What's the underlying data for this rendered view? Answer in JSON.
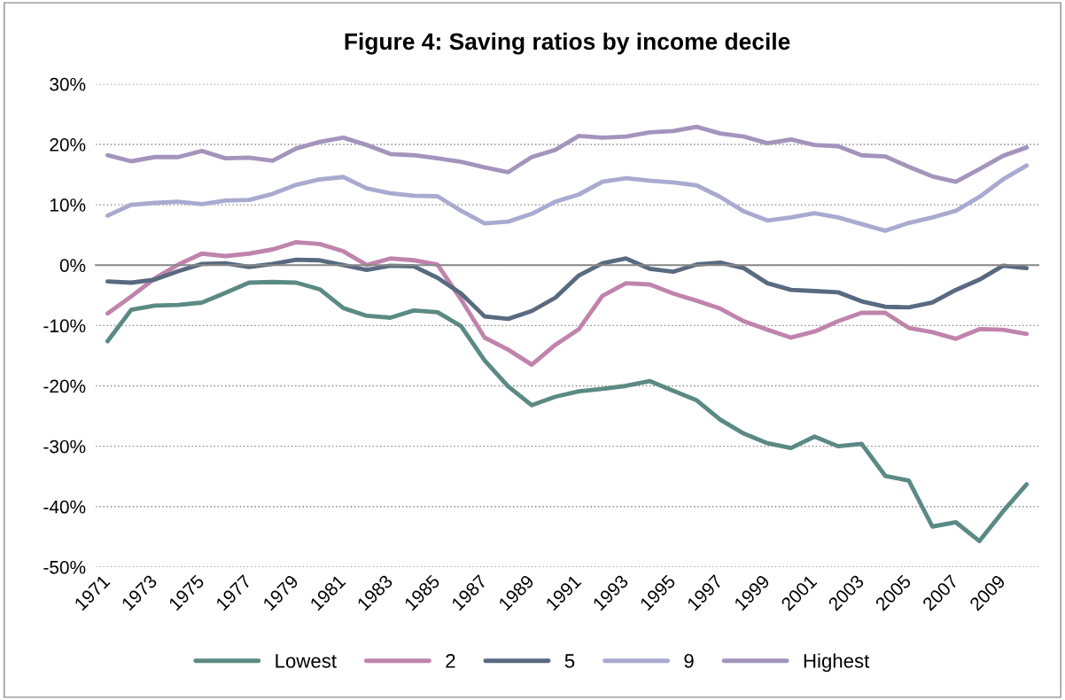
{
  "chart_data": {
    "type": "line",
    "title": "Figure 4: Saving ratios by income decile",
    "categories": [
      "1971",
      null,
      "1973",
      null,
      "1975",
      null,
      "1977",
      null,
      "1979",
      null,
      "1981",
      null,
      "1983",
      null,
      "1985",
      null,
      "1987",
      null,
      "1989",
      null,
      "1991",
      null,
      "1993",
      null,
      "1995",
      null,
      "1997",
      null,
      "1999",
      null,
      "2001",
      null,
      "2003",
      null,
      "2005",
      null,
      "2007",
      null,
      "2009",
      null
    ],
    "series": [
      {
        "name": "Lowest",
        "color": "#5b8a84",
        "values": [
          -12.6,
          -7.4,
          -6.7,
          -6.6,
          -6.2,
          -4.6,
          -2.9,
          -2.8,
          -2.9,
          -4.0,
          -7.1,
          -8.4,
          -8.7,
          -7.5,
          -7.8,
          -10.1,
          -15.8,
          -20.1,
          -23.2,
          -21.8,
          -20.9,
          -20.5,
          -20.0,
          -19.2,
          -20.8,
          -22.4,
          -25.6,
          -27.9,
          -29.5,
          -30.3,
          -28.4,
          -30.0,
          -29.6,
          -34.9,
          -35.7,
          -43.3,
          -42.6,
          -45.7,
          -40.8,
          -36.3
        ]
      },
      {
        "name": "2",
        "color": "#c084ac",
        "values": [
          -8.0,
          -5.2,
          -2.2,
          0.1,
          1.9,
          1.5,
          1.9,
          2.6,
          3.8,
          3.5,
          2.3,
          0.0,
          1.1,
          0.8,
          0.1,
          -5.7,
          -12.0,
          -14.0,
          -16.5,
          -13.2,
          -10.6,
          -5.1,
          -3.0,
          -3.2,
          -4.7,
          -5.9,
          -7.2,
          -9.3,
          -10.7,
          -12.0,
          -11.0,
          -9.3,
          -7.9,
          -7.9,
          -10.4,
          -11.1,
          -12.2,
          -10.6,
          -10.7,
          -11.4
        ]
      },
      {
        "name": "5",
        "color": "#586a80",
        "values": [
          -2.7,
          -2.9,
          -2.4,
          -1.0,
          0.2,
          0.3,
          -0.3,
          0.2,
          0.9,
          0.8,
          0.0,
          -0.8,
          -0.1,
          -0.2,
          -2.1,
          -4.7,
          -8.5,
          -8.9,
          -7.6,
          -5.4,
          -1.7,
          0.3,
          1.1,
          -0.6,
          -1.1,
          0.1,
          0.4,
          -0.5,
          -3.0,
          -4.1,
          -4.3,
          -4.5,
          -6.0,
          -6.9,
          -7.0,
          -6.2,
          -4.1,
          -2.4,
          -0.1,
          -0.5
        ]
      },
      {
        "name": "9",
        "color": "#a9aad0",
        "values": [
          8.2,
          10.0,
          10.3,
          10.5,
          10.1,
          10.7,
          10.8,
          11.8,
          13.3,
          14.2,
          14.6,
          12.7,
          11.9,
          11.5,
          11.4,
          9.0,
          6.9,
          7.2,
          8.5,
          10.5,
          11.7,
          13.8,
          14.4,
          14.0,
          13.7,
          13.2,
          11.3,
          8.9,
          7.4,
          7.9,
          8.6,
          7.9,
          6.8,
          5.7,
          7.0,
          7.9,
          9.0,
          11.3,
          14.2,
          16.5
        ]
      },
      {
        "name": "Highest",
        "color": "#a494bc",
        "values": [
          18.2,
          17.2,
          17.9,
          17.9,
          18.9,
          17.7,
          17.8,
          17.3,
          19.3,
          20.4,
          21.1,
          19.9,
          18.4,
          18.2,
          17.7,
          17.1,
          16.2,
          15.4,
          17.9,
          19.1,
          21.4,
          21.1,
          21.3,
          22.0,
          22.2,
          22.9,
          21.8,
          21.3,
          20.2,
          20.8,
          19.9,
          19.7,
          18.2,
          18.0,
          16.3,
          14.7,
          13.8,
          15.9,
          18.1,
          19.5
        ]
      }
    ],
    "ylim": [
      -50,
      30
    ],
    "yticks": [
      {
        "value": -50,
        "label": "-50%"
      },
      {
        "value": -40,
        "label": "-40%"
      },
      {
        "value": -30,
        "label": "-30%"
      },
      {
        "value": -20,
        "label": "-20%"
      },
      {
        "value": -10,
        "label": "-10%"
      },
      {
        "value": 0,
        "label": "0%"
      },
      {
        "value": 10,
        "label": "10%"
      },
      {
        "value": 20,
        "label": "20%"
      },
      {
        "value": 30,
        "label": "30%"
      }
    ],
    "grid": "y",
    "legend": "bottom",
    "marker": "none",
    "line_style": "solid"
  }
}
